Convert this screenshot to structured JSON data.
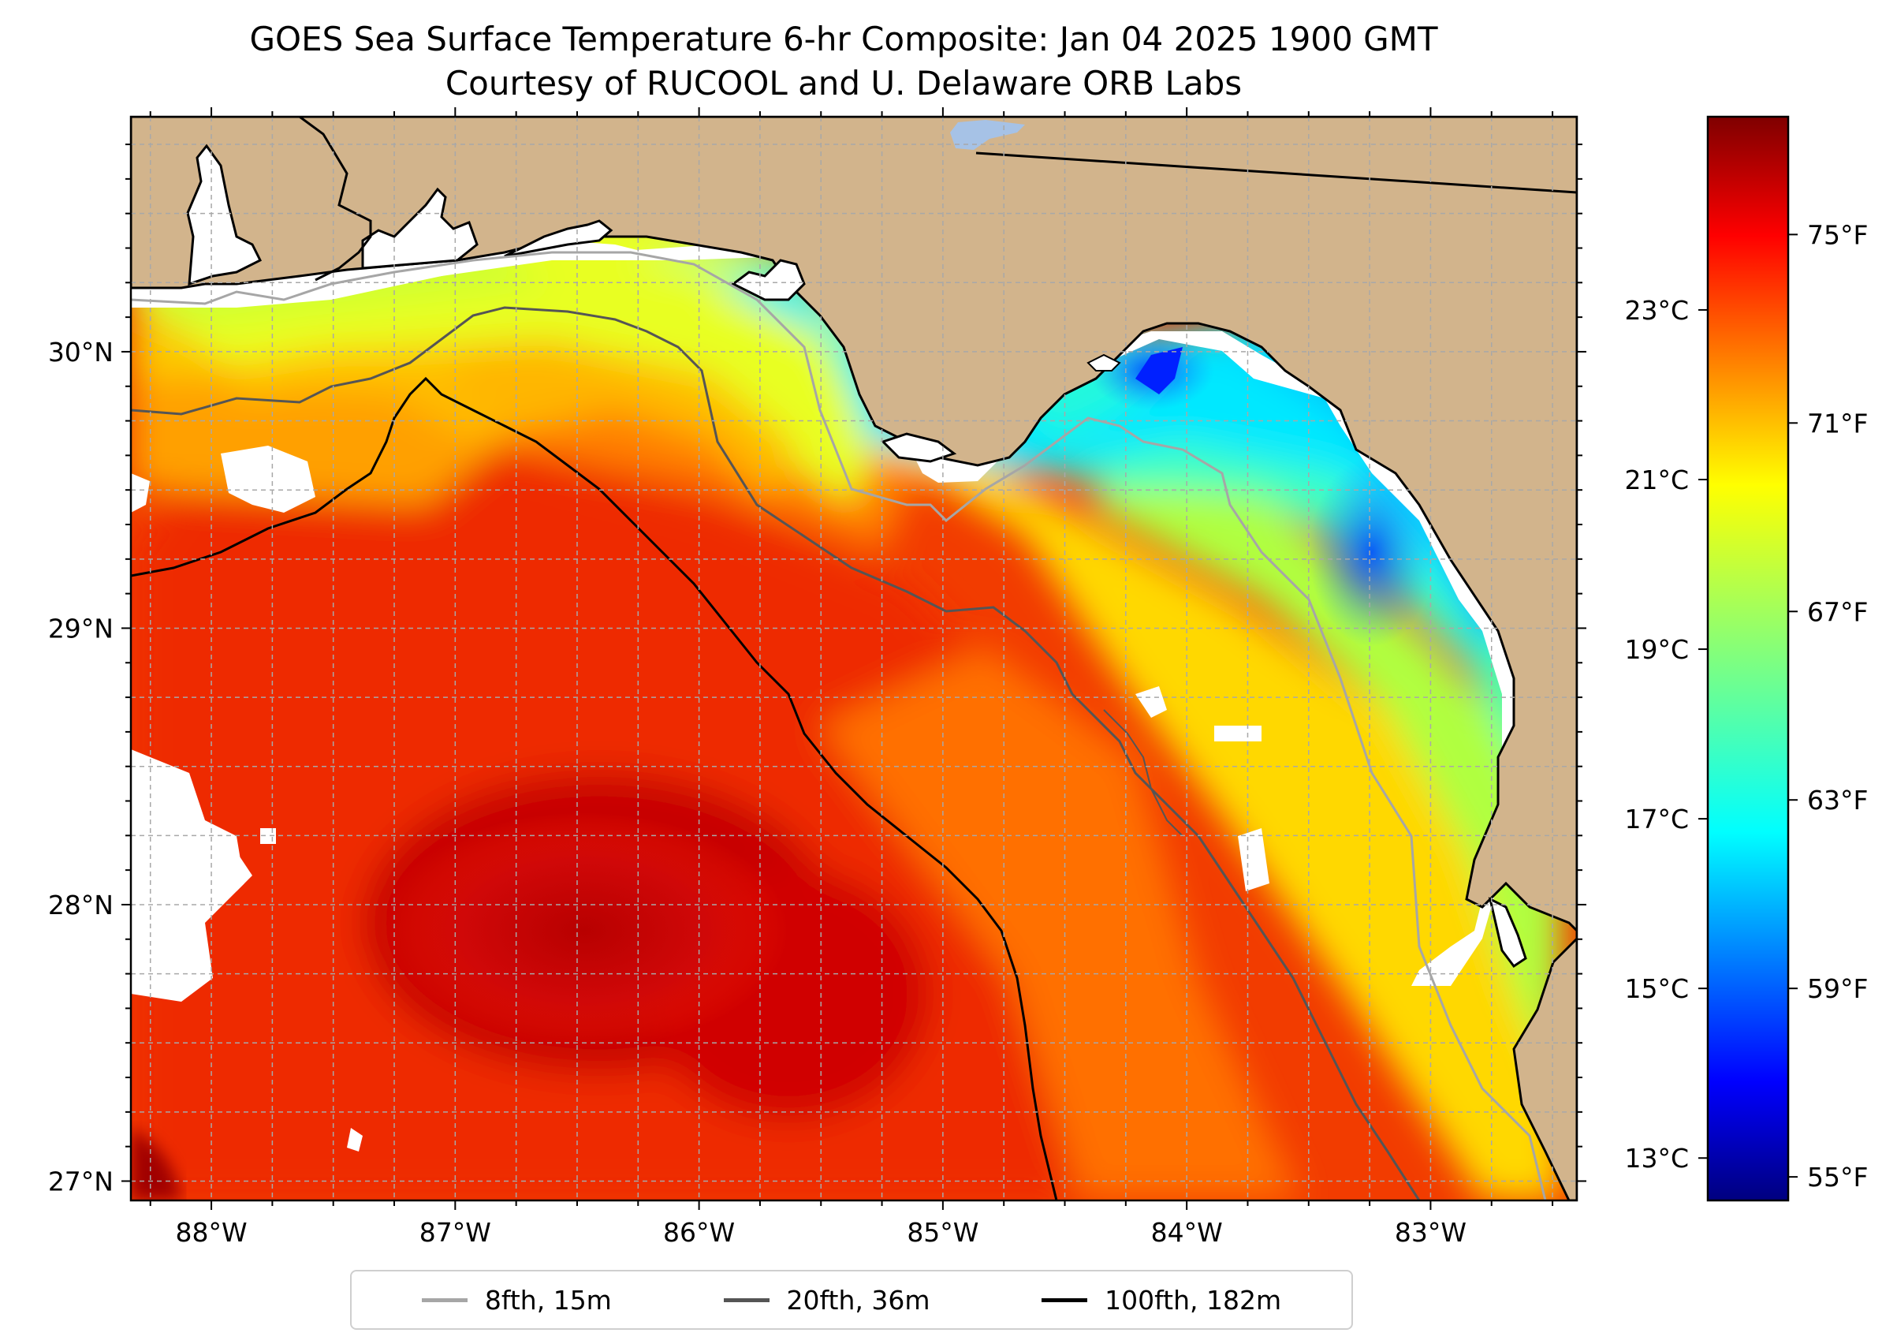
{
  "title": {
    "line1": "GOES Sea Surface Temperature 6-hr Composite: Jan 04 2025 1900 GMT",
    "line2": "Courtesy of RUCOOL and U. Delaware ORB Labs"
  },
  "map": {
    "lon_range": [
      -88.33,
      -82.4
    ],
    "lat_range": [
      26.93,
      30.85
    ],
    "lon_ticks": [
      {
        "value": -88,
        "label": "88°W"
      },
      {
        "value": -87,
        "label": "87°W"
      },
      {
        "value": -86,
        "label": "86°W"
      },
      {
        "value": -85,
        "label": "85°W"
      },
      {
        "value": -84,
        "label": "84°W"
      },
      {
        "value": -83,
        "label": "83°W"
      }
    ],
    "lat_ticks": [
      {
        "value": 27,
        "label": "27°N"
      },
      {
        "value": 28,
        "label": "28°N"
      },
      {
        "value": 29,
        "label": "29°N"
      },
      {
        "value": 30,
        "label": "30°N"
      }
    ],
    "gridlines": "dashed",
    "colors": {
      "land": "#d2b48c",
      "no_data": "#ffffff",
      "lake": "#a6c2e6",
      "gridline": "#a8a8a8"
    }
  },
  "colorbar": {
    "colormap": "jet",
    "range_f": [
      54.5,
      77.5
    ],
    "fahrenheit_ticks": [
      {
        "value": 55,
        "label": "55°F"
      },
      {
        "value": 59,
        "label": "59°F"
      },
      {
        "value": 63,
        "label": "63°F"
      },
      {
        "value": 67,
        "label": "67°F"
      },
      {
        "value": 71,
        "label": "71°F"
      },
      {
        "value": 75,
        "label": "75°F"
      }
    ],
    "celsius_ticks": [
      {
        "value": 13,
        "label": "13°C"
      },
      {
        "value": 15,
        "label": "15°C"
      },
      {
        "value": 17,
        "label": "17°C"
      },
      {
        "value": 19,
        "label": "19°C"
      },
      {
        "value": 21,
        "label": "21°C"
      },
      {
        "value": 23,
        "label": "23°C"
      }
    ]
  },
  "legend": [
    {
      "label": "8fth, 15m",
      "color": "#a6a6a6"
    },
    {
      "label": "20fth, 36m",
      "color": "#555555"
    },
    {
      "label": "100fth, 182m",
      "color": "#000000"
    }
  ]
}
